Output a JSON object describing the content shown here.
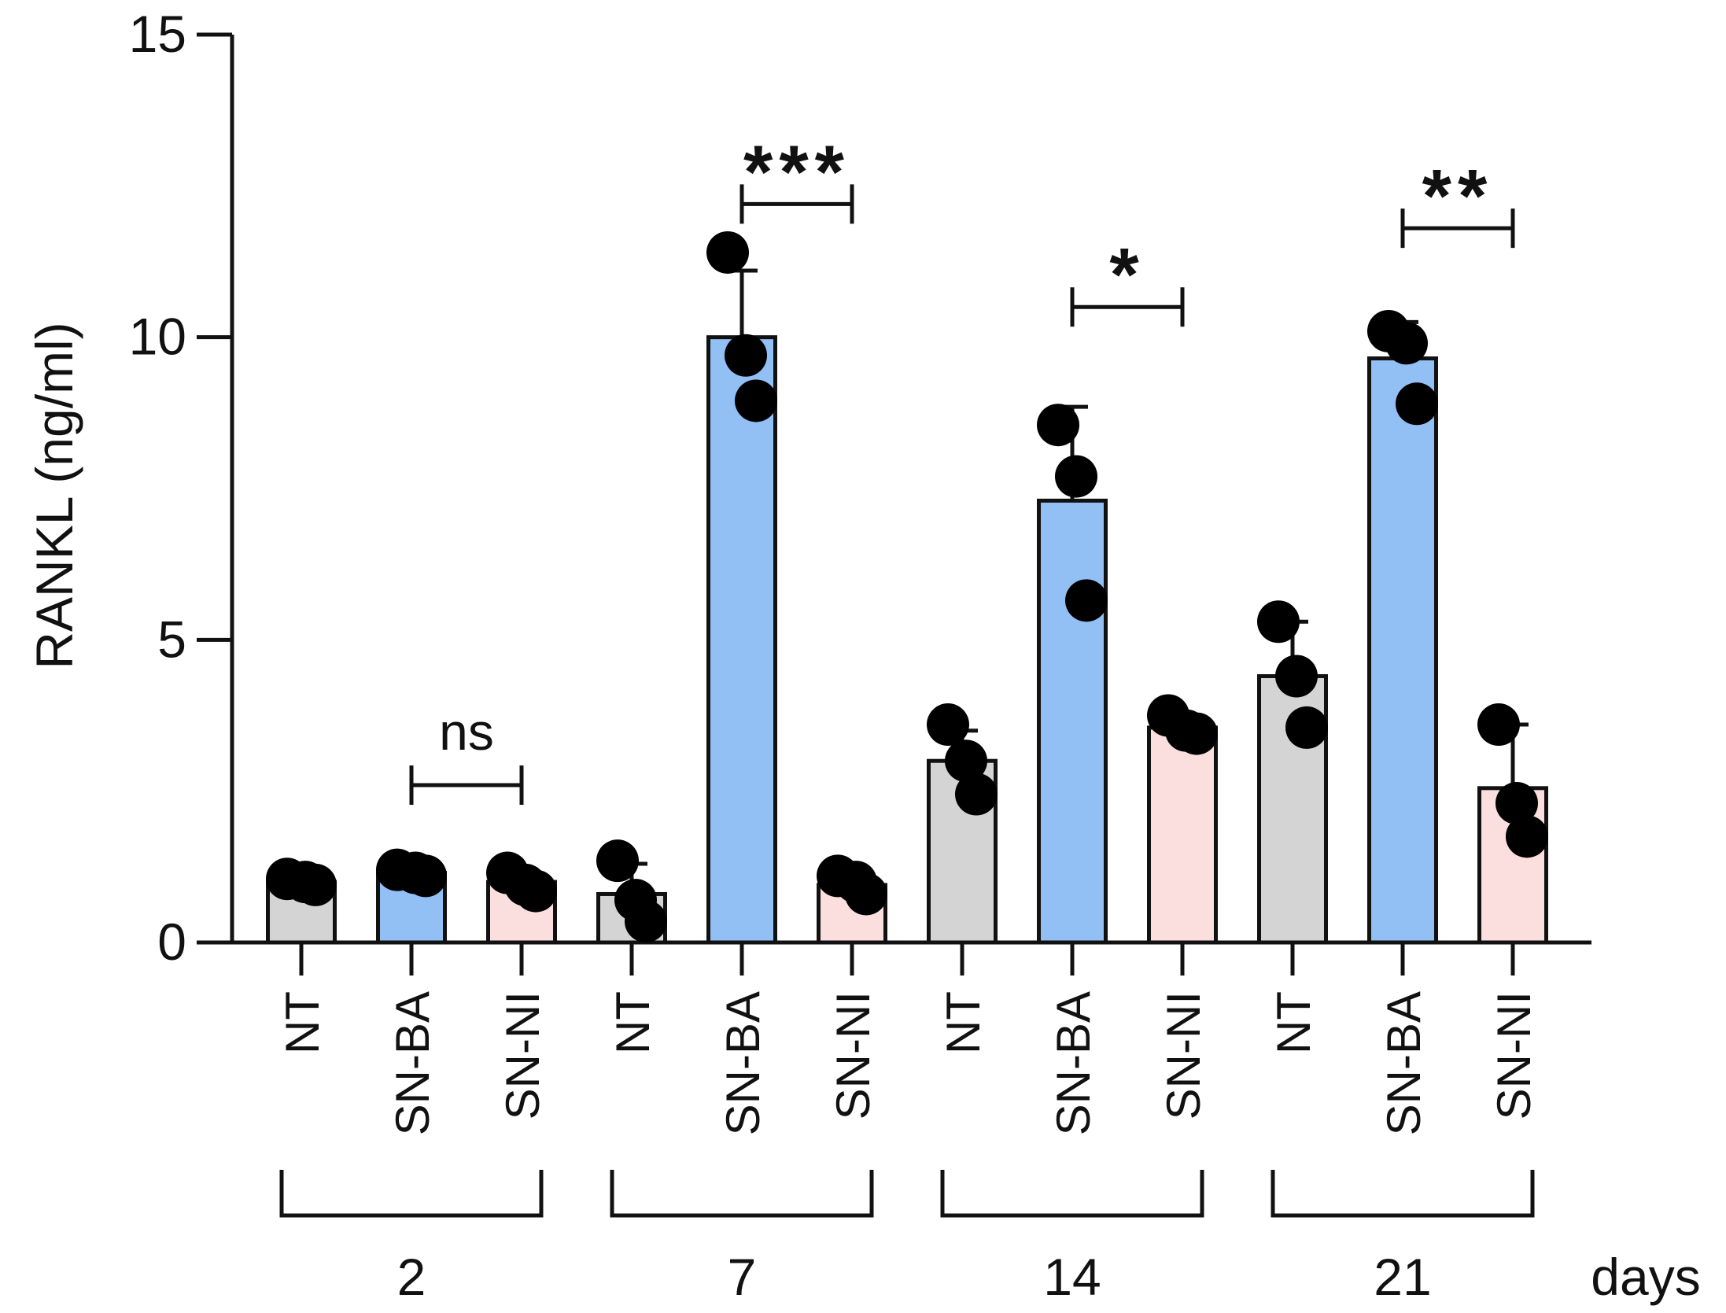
{
  "chart_data": {
    "type": "bar",
    "title": "",
    "ylabel": "RANKL (ng/ml)",
    "xlabel": "days",
    "ylim": [
      0,
      15
    ],
    "yticks": [
      "0",
      "5",
      "10",
      "15"
    ],
    "groups": [
      {
        "day": "2",
        "bars": [
          {
            "label": "NT",
            "value": 1.0,
            "sd": 0.05,
            "points": [
              1.05,
              1.0,
              0.95
            ]
          },
          {
            "label": "SN-BA",
            "value": 1.15,
            "sd": 0.05,
            "points": [
              1.2,
              1.15,
              1.1
            ]
          },
          {
            "label": "SN-NI",
            "value": 1.0,
            "sd": 0.15,
            "points": [
              1.15,
              0.95,
              0.85
            ]
          }
        ],
        "significance": {
          "text": "ns",
          "y": 2.6
        }
      },
      {
        "day": "7",
        "bars": [
          {
            "label": "NT",
            "value": 0.8,
            "sd": 0.5,
            "points": [
              1.35,
              0.7,
              0.35
            ]
          },
          {
            "label": "SN-BA",
            "value": 10.0,
            "sd": 1.1,
            "points": [
              11.4,
              9.7,
              8.95
            ]
          },
          {
            "label": "SN-NI",
            "value": 0.95,
            "sd": 0.15,
            "points": [
              1.1,
              1.0,
              0.8
            ]
          }
        ],
        "significance": {
          "text": "***",
          "y": 12.2
        }
      },
      {
        "day": "14",
        "bars": [
          {
            "label": "NT",
            "value": 3.0,
            "sd": 0.5,
            "points": [
              3.6,
              3.0,
              2.45
            ]
          },
          {
            "label": "SN-BA",
            "value": 7.3,
            "sd": 1.55,
            "points": [
              8.55,
              7.7,
              5.65
            ]
          },
          {
            "label": "SN-NI",
            "value": 3.55,
            "sd": 0.15,
            "points": [
              3.75,
              3.5,
              3.45
            ]
          }
        ],
        "significance": {
          "text": "*",
          "y": 10.5
        }
      },
      {
        "day": "21",
        "bars": [
          {
            "label": "NT",
            "value": 4.4,
            "sd": 0.9,
            "points": [
              5.3,
              4.4,
              3.55
            ]
          },
          {
            "label": "SN-BA",
            "value": 9.65,
            "sd": 0.6,
            "points": [
              10.1,
              9.9,
              8.9
            ]
          },
          {
            "label": "SN-NI",
            "value": 2.55,
            "sd": 1.05,
            "points": [
              3.6,
              2.3,
              1.75
            ]
          }
        ],
        "significance": {
          "text": "**",
          "y": 11.8
        }
      }
    ],
    "colors": {
      "NT": "#d4d4d4",
      "SN-BA": "#92bff4",
      "SN-NI": "#fbdfdf",
      "stroke": "#111111",
      "point": "#000000"
    }
  }
}
